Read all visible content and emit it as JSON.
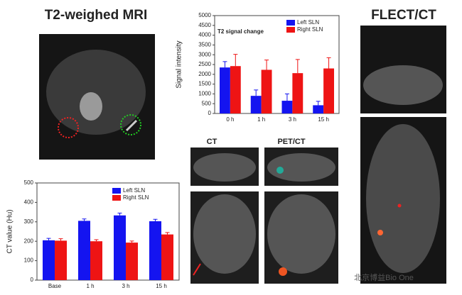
{
  "chart_data": [
    {
      "type": "bar",
      "annotation": "T2 signal change",
      "ylabel": "Signal intensity",
      "categories": [
        "0 h",
        "1 h",
        "3 h",
        "15 h"
      ],
      "series": [
        {
          "name": "Left SLN",
          "color": "#1414f0",
          "values": [
            2350,
            900,
            650,
            420
          ],
          "errors": [
            300,
            300,
            350,
            200
          ]
        },
        {
          "name": "Right SLN",
          "color": "#ee1414",
          "values": [
            2420,
            2230,
            2060,
            2300
          ],
          "errors": [
            600,
            500,
            700,
            550
          ]
        }
      ],
      "ylim": [
        0,
        5000
      ],
      "yticks": [
        0,
        500,
        1000,
        1500,
        2000,
        2500,
        3000,
        3500,
        4000,
        4500,
        5000
      ],
      "legend": "top-right"
    },
    {
      "type": "bar",
      "ylabel": "CT value (Hu)",
      "categories": [
        "Base",
        "1 h",
        "3 h",
        "15 h"
      ],
      "series": [
        {
          "name": "Left SLN",
          "color": "#1414f0",
          "values": [
            205,
            305,
            333,
            303
          ],
          "errors": [
            10,
            10,
            12,
            10
          ]
        },
        {
          "name": "Right SLN",
          "color": "#ee1414",
          "values": [
            203,
            200,
            193,
            235
          ],
          "errors": [
            10,
            8,
            8,
            10
          ]
        }
      ],
      "ylim": [
        0,
        500
      ],
      "yticks": [
        0,
        100,
        200,
        300,
        400,
        500
      ],
      "legend": "top-right"
    }
  ],
  "labels": {
    "mri": "T2-weighed MRI",
    "flect": "FLECT/CT",
    "ct": "CT",
    "pet": "PET/CT",
    "watermark": "北京博益Bio One"
  }
}
